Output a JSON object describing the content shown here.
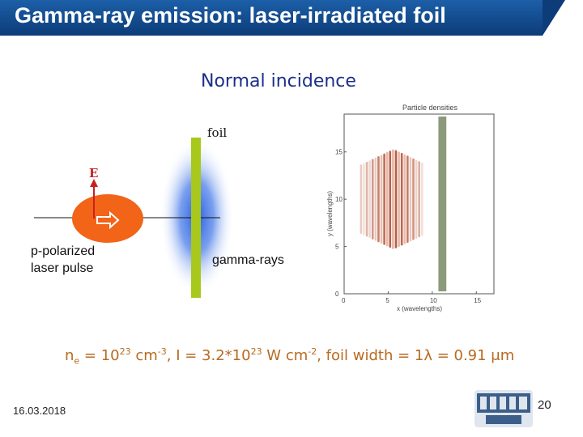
{
  "header": {
    "title": "Gamma-ray emission: laser-irradiated foil"
  },
  "subtitle": "Normal incidence",
  "diagram": {
    "foil_label": "foil",
    "field_label": "E",
    "laser_label_line1": "p-polarized",
    "laser_label_line2": "laser pulse",
    "gamma_label": "gamma-rays"
  },
  "simulation_plot": {
    "title": "Particle densities",
    "xlabel": "x (wavelengths)",
    "ylabel": "y (wavelengths)",
    "x_ticks": [
      "0",
      "5",
      "10",
      "15"
    ],
    "y_ticks": [
      "0",
      "5",
      "10",
      "15"
    ],
    "xlim": [
      0,
      17
    ],
    "ylim": [
      0,
      19
    ]
  },
  "parameters": {
    "ne_sym": "n",
    "ne_sub": "e",
    "ne_eq": " = 10",
    "ne_exp": "23",
    "ne_unit": " cm",
    "ne_unit_exp": "-3",
    "intensity": ", I = 3.2*10",
    "intensity_exp": "23",
    "intensity_unit": " W cm",
    "intensity_unit_exp": "-2",
    "foil": ", foil width = 1λ = 0.91 μm"
  },
  "footer": {
    "date": "16.03.2018",
    "page_number": "20"
  },
  "colors": {
    "title_bar": "#1c5fa8",
    "foil": "#a8c81c",
    "laser": "#f26418",
    "gamma_glow": "#2a5fe0",
    "param_text": "#b86a20",
    "field_arrow": "#c82020"
  }
}
